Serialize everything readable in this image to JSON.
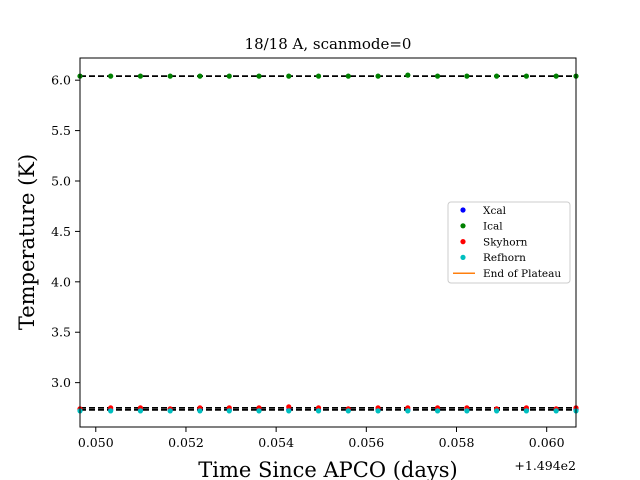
{
  "chart_data": {
    "type": "scatter",
    "title": "18/18 A, scanmode=0",
    "xlabel": "Time Since APCO (days)",
    "ylabel": "Temperature (K)",
    "x_offset_label": "+1.494e2",
    "xlim": [
      0.04965,
      0.06065
    ],
    "ylim": [
      2.56,
      6.22
    ],
    "x_ticks": [
      0.05,
      0.052,
      0.054,
      0.056,
      0.058,
      0.06
    ],
    "x_tick_labels": [
      "0.050",
      "0.052",
      "0.054",
      "0.056",
      "0.058",
      "0.060"
    ],
    "y_ticks": [
      3.0,
      3.5,
      4.0,
      4.5,
      5.0,
      5.5,
      6.0
    ],
    "y_tick_labels": [
      "3.0",
      "3.5",
      "4.0",
      "4.5",
      "5.0",
      "5.5",
      "6.0"
    ],
    "grid": false,
    "legend_position": "center-right",
    "x": [
      0.04965,
      0.05033,
      0.05099,
      0.05165,
      0.05231,
      0.05296,
      0.05362,
      0.05428,
      0.05494,
      0.0556,
      0.05626,
      0.05692,
      0.05758,
      0.05823,
      0.05889,
      0.05955,
      0.06021,
      0.06065
    ],
    "series": [
      {
        "name": "Xcal",
        "color": "#0000ff",
        "marker": "dot",
        "values": [
          2.73,
          2.73,
          2.73,
          2.73,
          2.73,
          2.73,
          2.73,
          2.73,
          2.73,
          2.73,
          2.73,
          2.73,
          2.73,
          2.73,
          2.73,
          2.73,
          2.73,
          2.73
        ]
      },
      {
        "name": "Ical",
        "color": "#008000",
        "marker": "dot",
        "values": [
          6.04,
          6.04,
          6.04,
          6.04,
          6.04,
          6.04,
          6.04,
          6.04,
          6.04,
          6.04,
          6.04,
          6.05,
          6.04,
          6.04,
          6.04,
          6.04,
          6.04,
          6.04
        ]
      },
      {
        "name": "Skyhorn",
        "color": "#ff0000",
        "marker": "dot",
        "values": [
          2.74,
          2.75,
          2.75,
          2.74,
          2.75,
          2.75,
          2.75,
          2.76,
          2.75,
          2.74,
          2.75,
          2.75,
          2.75,
          2.75,
          2.74,
          2.75,
          2.74,
          2.75
        ]
      },
      {
        "name": "Refhorn",
        "color": "#00bfbf",
        "marker": "dot",
        "values": [
          2.72,
          2.72,
          2.72,
          2.72,
          2.72,
          2.72,
          2.72,
          2.72,
          2.72,
          2.72,
          2.72,
          2.72,
          2.72,
          2.72,
          2.72,
          2.72,
          2.72,
          2.72
        ]
      },
      {
        "name": "End of Plateau",
        "color": "#ff7f0e",
        "marker": "line",
        "values": []
      }
    ],
    "reference_lines": [
      {
        "y": 6.04,
        "style": "dashed",
        "color": "#000000"
      },
      {
        "y": 2.75,
        "style": "dashed",
        "color": "#000000"
      },
      {
        "y": 2.73,
        "style": "dashed",
        "color": "#000000"
      }
    ]
  }
}
